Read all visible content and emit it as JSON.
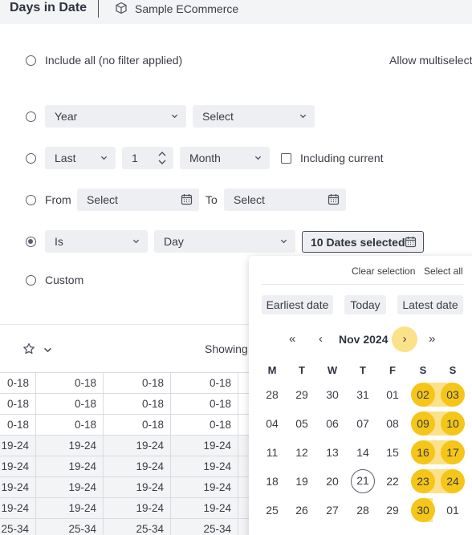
{
  "header": {
    "title": "Days in Date",
    "source": "Sample ECommerce",
    "source_icon": "cube-icon"
  },
  "filter": {
    "include_all_label": "Include all (no filter applied)",
    "allow_multiselect": "Allow multiselect",
    "year_row": {
      "unit": "Year",
      "value": "Select"
    },
    "last_row": {
      "mode": "Last",
      "count": "1",
      "unit": "Month",
      "including_current": "Including current",
      "including_current_checked": false
    },
    "from_row": {
      "from_label": "From",
      "from_value": "Select",
      "to_label": "To",
      "to_value": "Select"
    },
    "is_row": {
      "op": "Is",
      "unit": "Day",
      "dates_button": "10 Dates selected"
    },
    "custom_label": "Custom",
    "selected_option": "is"
  },
  "toolbar": {
    "showing": "Showing:"
  },
  "grid": {
    "rows": [
      [
        "0-18",
        "0-18",
        "0-18",
        "0-18"
      ],
      [
        "0-18",
        "0-18",
        "0-18",
        "0-18"
      ],
      [
        "0-18",
        "0-18",
        "0-18",
        "0-18"
      ],
      [
        "19-24",
        "19-24",
        "19-24",
        "19-24"
      ],
      [
        "19-24",
        "19-24",
        "19-24",
        "19-24"
      ],
      [
        "19-24",
        "19-24",
        "19-24",
        "19-24"
      ],
      [
        "19-24",
        "19-24",
        "19-24",
        "19-24"
      ],
      [
        "25-34",
        "25-34",
        "25-34",
        "25-34"
      ]
    ]
  },
  "calendar": {
    "clear_selection": "Clear selection",
    "select_all": "Select all",
    "earliest": "Earliest date",
    "today": "Today",
    "latest": "Latest date",
    "nav_first": "«",
    "nav_prev": "‹",
    "month": "Nov 2024",
    "nav_next": "›",
    "nav_last": "»",
    "weekdays": [
      "M",
      "T",
      "W",
      "T",
      "F",
      "S",
      "S"
    ],
    "weeks": [
      [
        "28",
        "29",
        "30",
        "31",
        "01",
        "02",
        "03"
      ],
      [
        "04",
        "05",
        "06",
        "07",
        "08",
        "09",
        "10"
      ],
      [
        "11",
        "12",
        "13",
        "14",
        "15",
        "16",
        "17"
      ],
      [
        "18",
        "19",
        "20",
        "21",
        "22",
        "23",
        "24"
      ],
      [
        "25",
        "26",
        "27",
        "28",
        "29",
        "30",
        "01"
      ]
    ],
    "selected": [
      "02",
      "03",
      "09",
      "10",
      "16",
      "17",
      "23",
      "24",
      "30"
    ],
    "today_marker": "21",
    "selected_color": "#f5c518",
    "range_color": "#fbe18a"
  }
}
